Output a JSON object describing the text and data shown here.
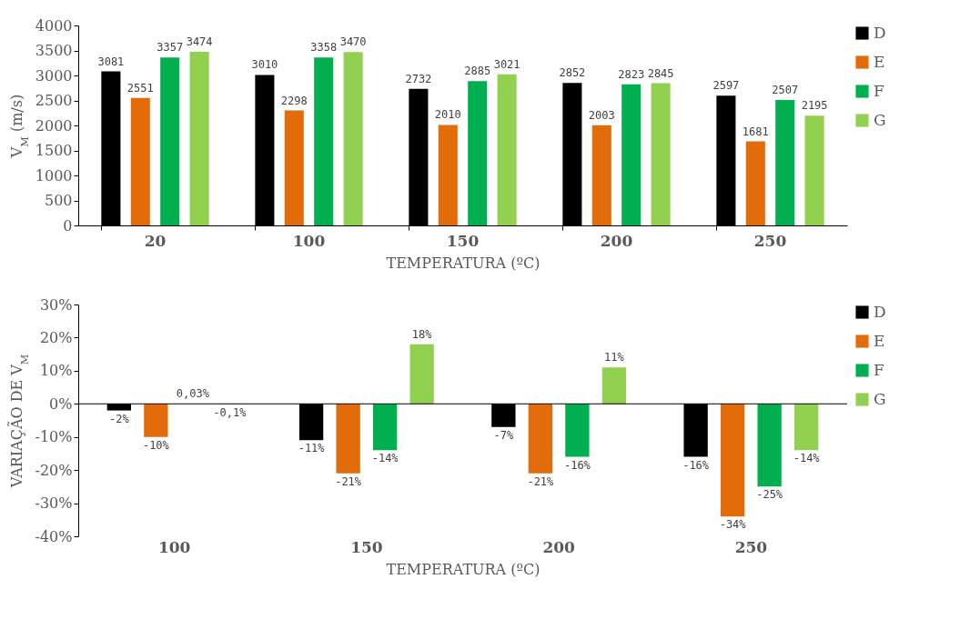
{
  "chart_data": [
    {
      "type": "bar",
      "xlabel": "TEMPERATURA (ºC)",
      "ylabel": "V$_{M}$ (m/s)",
      "categories": [
        "20",
        "100",
        "150",
        "200",
        "250"
      ],
      "series": [
        {
          "name": "D",
          "color": "#000000",
          "values": [
            3081,
            3010,
            2732,
            2852,
            2597
          ]
        },
        {
          "name": "E",
          "color": "#e36c0a",
          "values": [
            2551,
            2298,
            2010,
            2003,
            1681
          ]
        },
        {
          "name": "F",
          "color": "#00b050",
          "values": [
            3357,
            3358,
            2885,
            2823,
            2507
          ]
        },
        {
          "name": "G",
          "color": "#92d050",
          "values": [
            3474,
            3470,
            3021,
            2845,
            2195
          ]
        }
      ],
      "ylim": [
        0,
        4000
      ],
      "yticks": [
        0,
        500,
        1000,
        1500,
        2000,
        2500,
        3000,
        3500,
        4000
      ],
      "data_labels": true,
      "legend": "right"
    },
    {
      "type": "bar",
      "xlabel": "TEMPERATURA (ºC)",
      "ylabel": "VARIAÇÃO DE V$_{M}$",
      "categories": [
        "100",
        "150",
        "200",
        "250"
      ],
      "series": [
        {
          "name": "D",
          "color": "#000000",
          "values": [
            -2,
            -11,
            -7,
            -16
          ],
          "value_labels": [
            "-2%",
            "-11%",
            "-7%",
            "-16%"
          ]
        },
        {
          "name": "E",
          "color": "#e36c0a",
          "values": [
            -10,
            -21,
            -21,
            -34
          ],
          "value_labels": [
            "-10%",
            "-21%",
            "-21%",
            "-34%"
          ]
        },
        {
          "name": "F",
          "color": "#00b050",
          "values": [
            0.03,
            -14,
            -16,
            -25
          ],
          "value_labels": [
            "0,03%",
            "-14%",
            "-16%",
            "-25%"
          ]
        },
        {
          "name": "G",
          "color": "#92d050",
          "values": [
            -0.1,
            18,
            11,
            -14
          ],
          "value_labels": [
            "-0,1%",
            "18%",
            "11%",
            "-14%"
          ]
        }
      ],
      "ylim": [
        -40,
        30
      ],
      "yticks": [
        {
          "value": -40,
          "label": "-40%"
        },
        {
          "value": -30,
          "label": "-30%"
        },
        {
          "value": -20,
          "label": "-20%"
        },
        {
          "value": -10,
          "label": "-10%"
        },
        {
          "value": 0,
          "label": "0%"
        },
        {
          "value": 10,
          "label": "10%"
        },
        {
          "value": 20,
          "label": "20%"
        },
        {
          "value": 30,
          "label": "30%"
        }
      ],
      "legend": "right"
    }
  ]
}
